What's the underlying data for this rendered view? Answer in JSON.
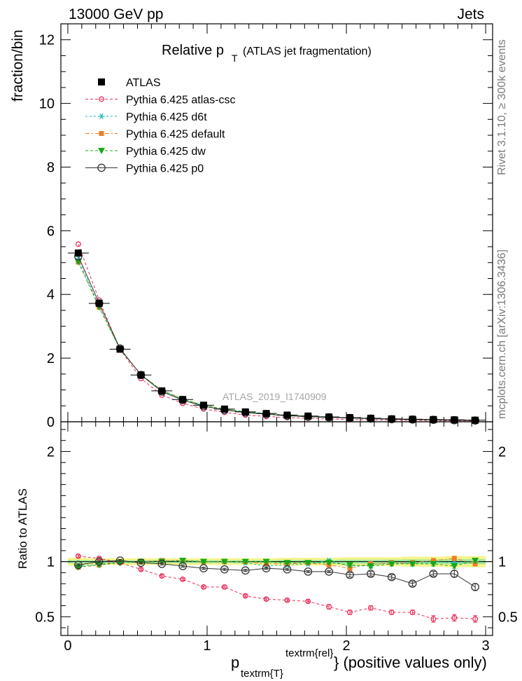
{
  "header": {
    "left": "13000 GeV pp",
    "right": "Jets",
    "title_main": "Relative p",
    "title_sub": "T",
    "title_rest": "(ATLAS jet fragmentation)"
  },
  "side_labels": {
    "rivet": "Rivet 3.1.10, ≥ 300k events",
    "mcplots": "mcplots.cern.ch [arXiv:1306.3436]"
  },
  "watermark": "ATLAS_2019_I1740909",
  "axes": {
    "top_ylabel": "fraction/bin",
    "bottom_ylabel": "Ratio to ATLAS",
    "xlabel_main": "p",
    "xlabel_sub": "textrm{T}",
    "xlabel_sup": "textrm{rel}",
    "xlabel_rest": "} (positive values only)"
  },
  "legend": [
    {
      "key": "atlas",
      "label": "ATLAS"
    },
    {
      "key": "csc",
      "label": "Pythia 6.425 atlas-csc"
    },
    {
      "key": "d6t",
      "label": "Pythia 6.425 d6t"
    },
    {
      "key": "def",
      "label": "Pythia 6.425 default"
    },
    {
      "key": "dw",
      "label": "Pythia 6.425 dw"
    },
    {
      "key": "p0",
      "label": "Pythia 6.425 p0"
    }
  ],
  "colors": {
    "atlas": "#000000",
    "csc": "#e8305c",
    "d6t": "#16b8b8",
    "def": "#f07d28",
    "dw": "#16a816",
    "p0": "#333333",
    "band_outer": "#f5f58a",
    "band_inner": "#9ee89e"
  },
  "chart_data": [
    {
      "type": "line",
      "panel": "main",
      "title": "Relative p T (ATLAS jet fragmentation)",
      "xlim": [
        -0.05,
        3.05
      ],
      "ylim": [
        0,
        12.5
      ],
      "yticks": [
        0,
        2,
        4,
        6,
        8,
        10,
        12
      ],
      "ytick_labels": [
        "0",
        "2",
        "4",
        "6",
        "8",
        "10",
        "12"
      ],
      "x": [
        0.075,
        0.225,
        0.375,
        0.525,
        0.675,
        0.825,
        0.975,
        1.125,
        1.275,
        1.425,
        1.575,
        1.725,
        1.875,
        2.025,
        2.175,
        2.325,
        2.475,
        2.625,
        2.775,
        2.925
      ],
      "series": [
        {
          "key": "atlas",
          "name": "ATLAS",
          "values": [
            5.3,
            3.72,
            2.28,
            1.47,
            0.97,
            0.7,
            0.52,
            0.4,
            0.31,
            0.26,
            0.21,
            0.18,
            0.15,
            0.13,
            0.11,
            0.09,
            0.08,
            0.07,
            0.06,
            0.05
          ]
        },
        {
          "key": "csc",
          "name": "Pythia 6.425 atlas-csc",
          "values": [
            5.58,
            3.82,
            2.27,
            1.36,
            0.84,
            0.58,
            0.4,
            0.3,
            0.21,
            0.17,
            0.13,
            0.11,
            0.09,
            0.07,
            0.06,
            0.05,
            0.04,
            0.04,
            0.03,
            0.03
          ]
        },
        {
          "key": "d6t",
          "name": "Pythia 6.425 d6t",
          "values": [
            5.12,
            3.62,
            2.27,
            1.48,
            0.98,
            0.7,
            0.52,
            0.4,
            0.31,
            0.25,
            0.2,
            0.17,
            0.15,
            0.12,
            0.1,
            0.09,
            0.08,
            0.07,
            0.06,
            0.05
          ]
        },
        {
          "key": "def",
          "name": "Pythia 6.425 default",
          "values": [
            5.02,
            3.6,
            2.28,
            1.48,
            0.99,
            0.71,
            0.52,
            0.4,
            0.31,
            0.25,
            0.2,
            0.17,
            0.14,
            0.12,
            0.11,
            0.09,
            0.08,
            0.07,
            0.06,
            0.05
          ]
        },
        {
          "key": "dw",
          "name": "Pythia 6.425 dw",
          "values": [
            5.02,
            3.6,
            2.28,
            1.48,
            0.99,
            0.71,
            0.52,
            0.4,
            0.31,
            0.26,
            0.2,
            0.18,
            0.15,
            0.12,
            0.11,
            0.09,
            0.08,
            0.07,
            0.06,
            0.05
          ]
        },
        {
          "key": "p0",
          "name": "Pythia 6.425 p0",
          "values": [
            5.2,
            3.72,
            2.3,
            1.47,
            0.95,
            0.68,
            0.49,
            0.37,
            0.29,
            0.24,
            0.19,
            0.16,
            0.14,
            0.12,
            0.1,
            0.08,
            0.07,
            0.06,
            0.05,
            0.04
          ]
        }
      ]
    },
    {
      "type": "line",
      "panel": "ratio",
      "ylabel": "Ratio to ATLAS",
      "xlim": [
        -0.05,
        3.05
      ],
      "ylim": [
        0.33,
        2.27
      ],
      "yticks": [
        0.5,
        1,
        2
      ],
      "ytick_labels": [
        "0.5",
        "1",
        "2"
      ],
      "xticks": [
        0,
        1,
        2,
        3
      ],
      "xtick_labels": [
        "0",
        "1",
        "2",
        "3"
      ],
      "x": [
        0.075,
        0.225,
        0.375,
        0.525,
        0.675,
        0.825,
        0.975,
        1.125,
        1.275,
        1.425,
        1.575,
        1.725,
        1.875,
        2.025,
        2.175,
        2.325,
        2.475,
        2.625,
        2.775,
        2.925
      ],
      "band_outer": [
        0.035,
        0.03,
        0.03,
        0.03,
        0.03,
        0.03,
        0.03,
        0.03,
        0.03,
        0.03,
        0.035,
        0.035,
        0.035,
        0.04,
        0.04,
        0.04,
        0.045,
        0.045,
        0.05,
        0.05
      ],
      "band_inner": [
        0.015,
        0.012,
        0.012,
        0.012,
        0.012,
        0.012,
        0.012,
        0.012,
        0.012,
        0.012,
        0.015,
        0.015,
        0.015,
        0.018,
        0.018,
        0.018,
        0.02,
        0.02,
        0.022,
        0.022
      ],
      "series": [
        {
          "key": "csc",
          "name": "Pythia 6.425 atlas-csc",
          "values": [
            1.05,
            1.03,
            0.99,
            0.93,
            0.87,
            0.84,
            0.77,
            0.77,
            0.69,
            0.66,
            0.65,
            0.64,
            0.59,
            0.54,
            0.58,
            0.54,
            0.54,
            0.48,
            0.49,
            0.48
          ],
          "errors": [
            0.01,
            0.01,
            0.01,
            0.01,
            0.01,
            0.01,
            0.01,
            0.01,
            0.01,
            0.01,
            0.01,
            0.01,
            0.02,
            0.02,
            0.02,
            0.02,
            0.02,
            0.03,
            0.03,
            0.03
          ]
        },
        {
          "key": "d6t",
          "name": "Pythia 6.425 d6t",
          "values": [
            0.96,
            0.98,
            1.0,
            1.0,
            1.01,
            1.0,
            1.0,
            1.0,
            0.99,
            0.96,
            0.97,
            0.98,
            1.01,
            0.96,
            0.97,
            0.99,
            0.99,
            1.0,
            0.99,
            1.0
          ],
          "errors": [
            0.01,
            0.01,
            0.01,
            0.01,
            0.01,
            0.01,
            0.01,
            0.01,
            0.01,
            0.01,
            0.01,
            0.01,
            0.01,
            0.02,
            0.02,
            0.02,
            0.02,
            0.02,
            0.02,
            0.02
          ]
        },
        {
          "key": "def",
          "name": "Pythia 6.425 default",
          "values": [
            0.95,
            0.97,
            1.0,
            1.0,
            1.01,
            1.01,
            1.0,
            1.0,
            1.0,
            0.98,
            0.98,
            0.99,
            0.97,
            0.94,
            0.98,
            0.99,
            0.99,
            1.01,
            1.03,
            0.98
          ],
          "errors": [
            0.01,
            0.01,
            0.01,
            0.01,
            0.01,
            0.01,
            0.01,
            0.01,
            0.01,
            0.01,
            0.01,
            0.01,
            0.01,
            0.02,
            0.02,
            0.02,
            0.02,
            0.02,
            0.02,
            0.02
          ]
        },
        {
          "key": "dw",
          "name": "Pythia 6.425 dw",
          "values": [
            0.95,
            0.97,
            0.99,
            1.0,
            1.0,
            1.01,
            1.0,
            1.0,
            1.0,
            1.0,
            0.99,
            0.99,
            0.99,
            0.97,
            0.96,
            0.98,
            0.98,
            0.98,
            0.96,
            1.01
          ],
          "errors": [
            0.01,
            0.01,
            0.01,
            0.01,
            0.01,
            0.01,
            0.01,
            0.01,
            0.01,
            0.01,
            0.01,
            0.01,
            0.01,
            0.02,
            0.02,
            0.02,
            0.02,
            0.02,
            0.02,
            0.02
          ]
        },
        {
          "key": "p0",
          "name": "Pythia 6.425 p0",
          "values": [
            0.97,
            1.0,
            1.01,
            0.99,
            0.98,
            0.96,
            0.94,
            0.93,
            0.92,
            0.94,
            0.93,
            0.91,
            0.91,
            0.88,
            0.89,
            0.86,
            0.8,
            0.89,
            0.89,
            0.77
          ],
          "errors": [
            0.01,
            0.01,
            0.01,
            0.01,
            0.01,
            0.01,
            0.01,
            0.01,
            0.01,
            0.01,
            0.01,
            0.01,
            0.01,
            0.02,
            0.02,
            0.02,
            0.02,
            0.02,
            0.03,
            0.03
          ]
        }
      ]
    }
  ]
}
